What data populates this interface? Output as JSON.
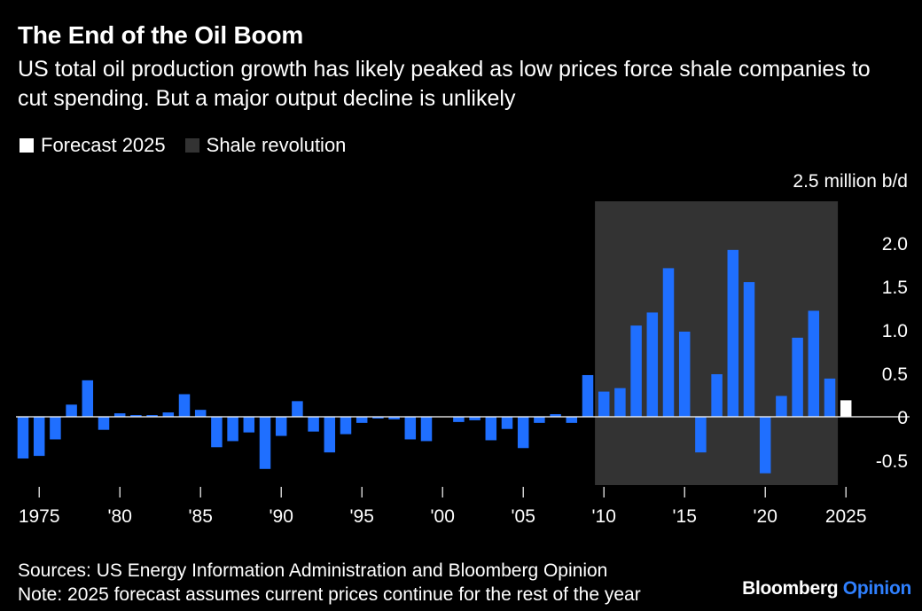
{
  "header": {
    "title": "The End of the Oil Boom",
    "subtitle": "US total oil production growth has likely peaked as low prices force shale companies to cut spending. But a major output decline is unlikely"
  },
  "legend": {
    "items": [
      {
        "label": "Forecast 2025",
        "color": "#ffffff"
      },
      {
        "label": "Shale revolution",
        "color": "#333333"
      }
    ]
  },
  "footer": {
    "sources": "Sources: US Energy Information Administration and Bloomberg Opinion",
    "note": "Note: 2025 forecast assumes current prices continue for the rest of the year"
  },
  "brand": {
    "name": "Bloomberg",
    "accent": "Opinion",
    "accent_color": "#2f80ff"
  },
  "chart_data": {
    "type": "bar",
    "unit": "million b/d",
    "x": [
      1974,
      1975,
      1976,
      1977,
      1978,
      1979,
      1980,
      1981,
      1982,
      1983,
      1984,
      1985,
      1986,
      1987,
      1988,
      1989,
      1990,
      1991,
      1992,
      1993,
      1994,
      1995,
      1996,
      1997,
      1998,
      1999,
      2000,
      2001,
      2002,
      2003,
      2004,
      2005,
      2006,
      2007,
      2008,
      2009,
      2010,
      2011,
      2012,
      2013,
      2014,
      2015,
      2016,
      2017,
      2018,
      2019,
      2020,
      2021,
      2022,
      2023,
      2024,
      2025
    ],
    "values": [
      -0.48,
      -0.45,
      -0.26,
      0.14,
      0.42,
      -0.15,
      0.04,
      0.02,
      0.02,
      0.05,
      0.26,
      0.08,
      -0.35,
      -0.28,
      -0.18,
      -0.6,
      -0.22,
      0.18,
      -0.17,
      -0.41,
      -0.2,
      -0.07,
      -0.02,
      -0.03,
      -0.26,
      -0.28,
      0.0,
      -0.06,
      -0.04,
      -0.27,
      -0.14,
      -0.36,
      -0.07,
      0.03,
      -0.07,
      0.48,
      0.29,
      0.33,
      1.05,
      1.2,
      1.71,
      0.98,
      -0.41,
      0.49,
      1.92,
      1.55,
      -0.65,
      0.24,
      0.91,
      1.22,
      0.44,
      0.19
    ],
    "forecast_year": 2025,
    "highlight_range": [
      2010,
      2024
    ],
    "highlight_label": "Shale revolution",
    "bar_color": "#1f6fff",
    "forecast_color": "#ffffff",
    "highlight_color": "#333333",
    "y_ticks": [
      {
        "value": 2.0,
        "label": "2.0"
      },
      {
        "value": 1.5,
        "label": "1.5"
      },
      {
        "value": 1.0,
        "label": "1.0"
      },
      {
        "value": 0.5,
        "label": "0.5"
      },
      {
        "value": 0,
        "label": "0"
      },
      {
        "value": -0.5,
        "label": "-0.5"
      }
    ],
    "y_top_label": "2.5 million b/d",
    "x_ticks": [
      {
        "value": 1975,
        "label": "1975"
      },
      {
        "value": 1980,
        "label": "'80"
      },
      {
        "value": 1985,
        "label": "'85"
      },
      {
        "value": 1990,
        "label": "'90"
      },
      {
        "value": 1995,
        "label": "'95"
      },
      {
        "value": 2000,
        "label": "'00"
      },
      {
        "value": 2005,
        "label": "'05"
      },
      {
        "value": 2010,
        "label": "'10"
      },
      {
        "value": 2015,
        "label": "'15"
      },
      {
        "value": 2020,
        "label": "'20"
      },
      {
        "value": 2025,
        "label": "2025"
      }
    ],
    "ylim": [
      -0.8,
      2.5
    ],
    "grid": false
  }
}
